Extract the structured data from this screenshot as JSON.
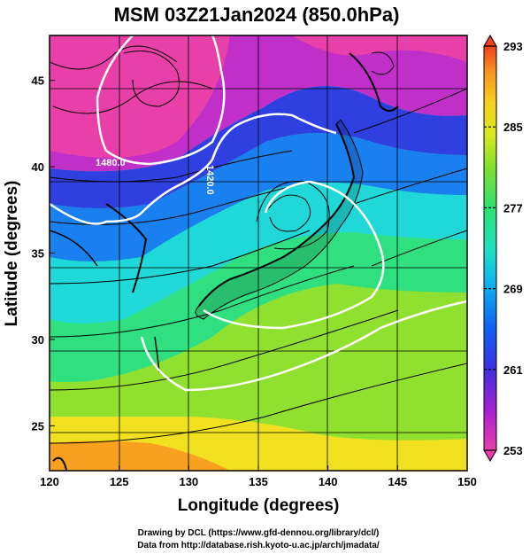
{
  "chart_data": {
    "type": "heatmap",
    "title": "MSM 03Z21Jan2024 (850.0hPa)",
    "xlabel": "Longitude (degrees)",
    "ylabel": "Latitude  (degrees)",
    "xlim": [
      120,
      150
    ],
    "ylim": [
      22.4,
      47.6
    ],
    "xticks": [
      120,
      125,
      130,
      135,
      140,
      145,
      150
    ],
    "yticks": [
      25,
      30,
      35,
      40,
      45
    ],
    "grid": true,
    "colorbar": {
      "range": [
        253,
        293
      ],
      "ticks": [
        253,
        261,
        269,
        277,
        285,
        293
      ],
      "colors": [
        "#e840a8",
        "#a020d0",
        "#4030e0",
        "#1060f0",
        "#10b0f0",
        "#20e0c0",
        "#30e070",
        "#80e030",
        "#d8e820",
        "#f8d020",
        "#f89020",
        "#f04020"
      ]
    },
    "contours": [
      {
        "label": "1480.0",
        "value": 1480.0
      },
      {
        "label": "1420.0",
        "value": 1420.0
      }
    ]
  },
  "credits": {
    "line1": "Drawing by DCL (https://www.gfd-dennou.org/library/dcl/)",
    "line2": "Data from http://database.rish.kyoto-u.ac.jp/arch/jmadata/"
  }
}
